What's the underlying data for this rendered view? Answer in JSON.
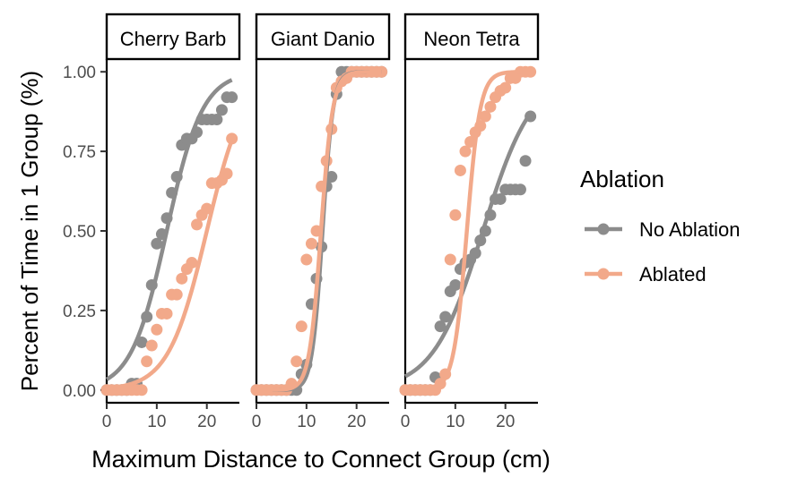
{
  "chart_data": {
    "type": "scatter",
    "xlabel": "Maximum Distance to Connect Group (cm)",
    "ylabel": "Percent of Time in 1 Group (%)",
    "xlim": [
      0,
      26.5
    ],
    "ylim": [
      -0.04,
      1.04
    ],
    "x_ticks": [
      0,
      10,
      20
    ],
    "y_ticks": [
      0.0,
      0.25,
      0.5,
      0.75,
      1.0
    ],
    "y_tick_labels": [
      "0.00",
      "0.25",
      "0.50",
      "0.75",
      "1.00"
    ],
    "grid": false,
    "legend": {
      "title": "Ablation",
      "position": "right",
      "entries": [
        {
          "label": "No Ablation",
          "color": "#8c8c8c"
        },
        {
          "label": "Ablated",
          "color": "#f2a98a"
        }
      ]
    },
    "panels": [
      {
        "label": "Cherry Barb",
        "series": [
          {
            "name": "No Ablation",
            "color": "#8c8c8c",
            "points": [
              [
                0,
                0
              ],
              [
                1,
                0
              ],
              [
                2,
                0
              ],
              [
                3,
                0
              ],
              [
                4,
                0
              ],
              [
                5,
                0.02
              ],
              [
                6,
                0.02
              ],
              [
                7,
                0.15
              ],
              [
                8,
                0.23
              ],
              [
                9,
                0.33
              ],
              [
                10,
                0.46
              ],
              [
                11,
                0.49
              ],
              [
                12,
                0.54
              ],
              [
                13,
                0.62
              ],
              [
                14,
                0.67
              ],
              [
                15,
                0.77
              ],
              [
                16,
                0.79
              ],
              [
                17,
                0.79
              ],
              [
                18,
                0.81
              ],
              [
                19,
                0.85
              ],
              [
                20,
                0.85
              ],
              [
                21,
                0.85
              ],
              [
                22,
                0.85
              ],
              [
                23,
                0.88
              ],
              [
                24,
                0.92
              ],
              [
                25,
                0.92
              ]
            ],
            "curve": {
              "x0": 12.0,
              "k": 0.28
            }
          },
          {
            "name": "Ablated",
            "color": "#f2a98a",
            "points": [
              [
                0,
                0
              ],
              [
                1,
                0
              ],
              [
                2,
                0
              ],
              [
                3,
                0
              ],
              [
                4,
                0
              ],
              [
                5,
                0
              ],
              [
                6,
                0
              ],
              [
                7,
                0
              ],
              [
                8,
                0.09
              ],
              [
                9,
                0.14
              ],
              [
                10,
                0.19
              ],
              [
                11,
                0.24
              ],
              [
                12,
                0.24
              ],
              [
                13,
                0.3
              ],
              [
                14,
                0.3
              ],
              [
                15,
                0.35
              ],
              [
                16,
                0.38
              ],
              [
                17,
                0.4
              ],
              [
                18,
                0.52
              ],
              [
                19,
                0.55
              ],
              [
                20,
                0.57
              ],
              [
                21,
                0.65
              ],
              [
                22,
                0.65
              ],
              [
                23,
                0.66
              ],
              [
                24,
                0.68
              ],
              [
                25,
                0.79
              ]
            ],
            "curve": {
              "x0": 20.0,
              "k": 0.26
            }
          }
        ]
      },
      {
        "label": "Giant Danio",
        "series": [
          {
            "name": "No Ablation",
            "color": "#8c8c8c",
            "points": [
              [
                0,
                0
              ],
              [
                1,
                0
              ],
              [
                2,
                0
              ],
              [
                3,
                0
              ],
              [
                4,
                0
              ],
              [
                5,
                0
              ],
              [
                6,
                0
              ],
              [
                7,
                0
              ],
              [
                8,
                0
              ],
              [
                9,
                0.05
              ],
              [
                10,
                0.08
              ],
              [
                11,
                0.27
              ],
              [
                12,
                0.35
              ],
              [
                13,
                0.45
              ],
              [
                14,
                0.64
              ],
              [
                15,
                0.67
              ],
              [
                16,
                0.93
              ],
              [
                17,
                1
              ],
              [
                18,
                1
              ],
              [
                19,
                1
              ],
              [
                20,
                1
              ],
              [
                21,
                1
              ],
              [
                22,
                1
              ],
              [
                23,
                1
              ],
              [
                24,
                1
              ],
              [
                25,
                1
              ]
            ],
            "curve": {
              "x0": 13.2,
              "k": 0.95
            }
          },
          {
            "name": "Ablated",
            "color": "#f2a98a",
            "points": [
              [
                0,
                0
              ],
              [
                1,
                0
              ],
              [
                2,
                0
              ],
              [
                3,
                0
              ],
              [
                4,
                0
              ],
              [
                5,
                0
              ],
              [
                6,
                0
              ],
              [
                7,
                0.02
              ],
              [
                8,
                0.09
              ],
              [
                9,
                0.2
              ],
              [
                10,
                0.41
              ],
              [
                11,
                0.46
              ],
              [
                12,
                0.5
              ],
              [
                13,
                0.64
              ],
              [
                14,
                0.72
              ],
              [
                15,
                0.82
              ],
              [
                16,
                0.95
              ],
              [
                17,
                0.97
              ],
              [
                18,
                0.98
              ],
              [
                19,
                1
              ],
              [
                20,
                1
              ],
              [
                21,
                1
              ],
              [
                22,
                1
              ],
              [
                23,
                1
              ],
              [
                24,
                1
              ],
              [
                25,
                1
              ]
            ],
            "curve": {
              "x0": 12.9,
              "k": 0.85
            }
          }
        ]
      },
      {
        "label": "Neon Tetra",
        "series": [
          {
            "name": "No Ablation",
            "color": "#8c8c8c",
            "points": [
              [
                0,
                0
              ],
              [
                1,
                0
              ],
              [
                2,
                0
              ],
              [
                3,
                0
              ],
              [
                4,
                0
              ],
              [
                5,
                0
              ],
              [
                6,
                0.04
              ],
              [
                7,
                0.2
              ],
              [
                8,
                0.23
              ],
              [
                9,
                0.31
              ],
              [
                10,
                0.33
              ],
              [
                11,
                0.38
              ],
              [
                12,
                0.4
              ],
              [
                13,
                0.41
              ],
              [
                14,
                0.43
              ],
              [
                15,
                0.47
              ],
              [
                16,
                0.5
              ],
              [
                17,
                0.55
              ],
              [
                18,
                0.6
              ],
              [
                19,
                0.6
              ],
              [
                20,
                0.63
              ],
              [
                21,
                0.63
              ],
              [
                22,
                0.63
              ],
              [
                23,
                0.63
              ],
              [
                24,
                0.72
              ],
              [
                25,
                0.86
              ]
            ],
            "curve": {
              "x0": 15.5,
              "k": 0.2
            }
          },
          {
            "name": "Ablated",
            "color": "#f2a98a",
            "points": [
              [
                0,
                0
              ],
              [
                1,
                0
              ],
              [
                2,
                0
              ],
              [
                3,
                0
              ],
              [
                4,
                0
              ],
              [
                5,
                0
              ],
              [
                6,
                0
              ],
              [
                7,
                0.02
              ],
              [
                8,
                0.05
              ],
              [
                9,
                0.41
              ],
              [
                10,
                0.55
              ],
              [
                11,
                0.69
              ],
              [
                12,
                0.75
              ],
              [
                13,
                0.78
              ],
              [
                14,
                0.81
              ],
              [
                15,
                0.83
              ],
              [
                16,
                0.86
              ],
              [
                17,
                0.89
              ],
              [
                18,
                0.92
              ],
              [
                19,
                0.94
              ],
              [
                20,
                0.95
              ],
              [
                21,
                0.98
              ],
              [
                22,
                0.98
              ],
              [
                23,
                1
              ],
              [
                24,
                1
              ],
              [
                25,
                1
              ]
            ],
            "curve": {
              "x0": 12.3,
              "k": 0.75
            }
          }
        ]
      }
    ]
  }
}
